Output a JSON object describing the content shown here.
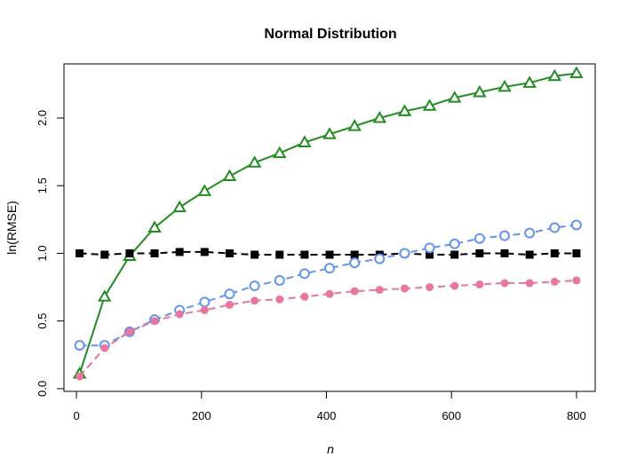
{
  "chart_data": {
    "type": "line",
    "title": "Normal Distribution",
    "xlabel": "n",
    "ylabel": "ln(RMSE)",
    "xlim": [
      -20,
      830
    ],
    "ylim": [
      -0.02,
      2.4
    ],
    "x_ticks": [
      0,
      200,
      400,
      600,
      800
    ],
    "y_ticks": [
      0.0,
      0.5,
      1.0,
      1.5,
      2.0
    ],
    "x_tick_labels": [
      "0",
      "200",
      "400",
      "600",
      "800"
    ],
    "y_tick_labels": [
      "0.0",
      "0.5",
      "1.0",
      "1.5",
      "2.0"
    ],
    "grid": false,
    "legend": "none",
    "x": [
      5,
      45,
      85,
      125,
      165,
      205,
      245,
      285,
      325,
      365,
      405,
      445,
      485,
      525,
      565,
      605,
      645,
      685,
      725,
      765,
      800
    ],
    "series": [
      {
        "color": "#228b22",
        "marker": "triangle-open",
        "line": "solid",
        "values": [
          0.11,
          0.68,
          0.98,
          1.19,
          1.34,
          1.46,
          1.57,
          1.67,
          1.74,
          1.82,
          1.88,
          1.94,
          2.0,
          2.05,
          2.09,
          2.15,
          2.19,
          2.23,
          2.26,
          2.31,
          2.33
        ]
      },
      {
        "color": "#000000",
        "marker": "square-filled",
        "line": "dashed",
        "values": [
          1.0,
          0.99,
          1.0,
          1.0,
          1.01,
          1.01,
          1.0,
          0.99,
          0.99,
          0.99,
          0.99,
          0.99,
          0.99,
          1.0,
          0.99,
          0.99,
          1.0,
          1.0,
          0.99,
          1.0,
          1.0
        ]
      },
      {
        "color": "#6495ed",
        "marker": "circle-open",
        "line": "dashed",
        "values": [
          0.32,
          0.32,
          0.42,
          0.51,
          0.58,
          0.64,
          0.7,
          0.76,
          0.8,
          0.85,
          0.89,
          0.93,
          0.96,
          1.0,
          1.04,
          1.07,
          1.11,
          1.13,
          1.15,
          1.19,
          1.21
        ]
      },
      {
        "color": "#e8779d",
        "marker": "circle-filled",
        "line": "dashed",
        "values": [
          0.09,
          0.3,
          0.42,
          0.5,
          0.55,
          0.58,
          0.62,
          0.65,
          0.66,
          0.68,
          0.7,
          0.72,
          0.73,
          0.74,
          0.75,
          0.76,
          0.77,
          0.78,
          0.78,
          0.79,
          0.8
        ]
      }
    ]
  }
}
